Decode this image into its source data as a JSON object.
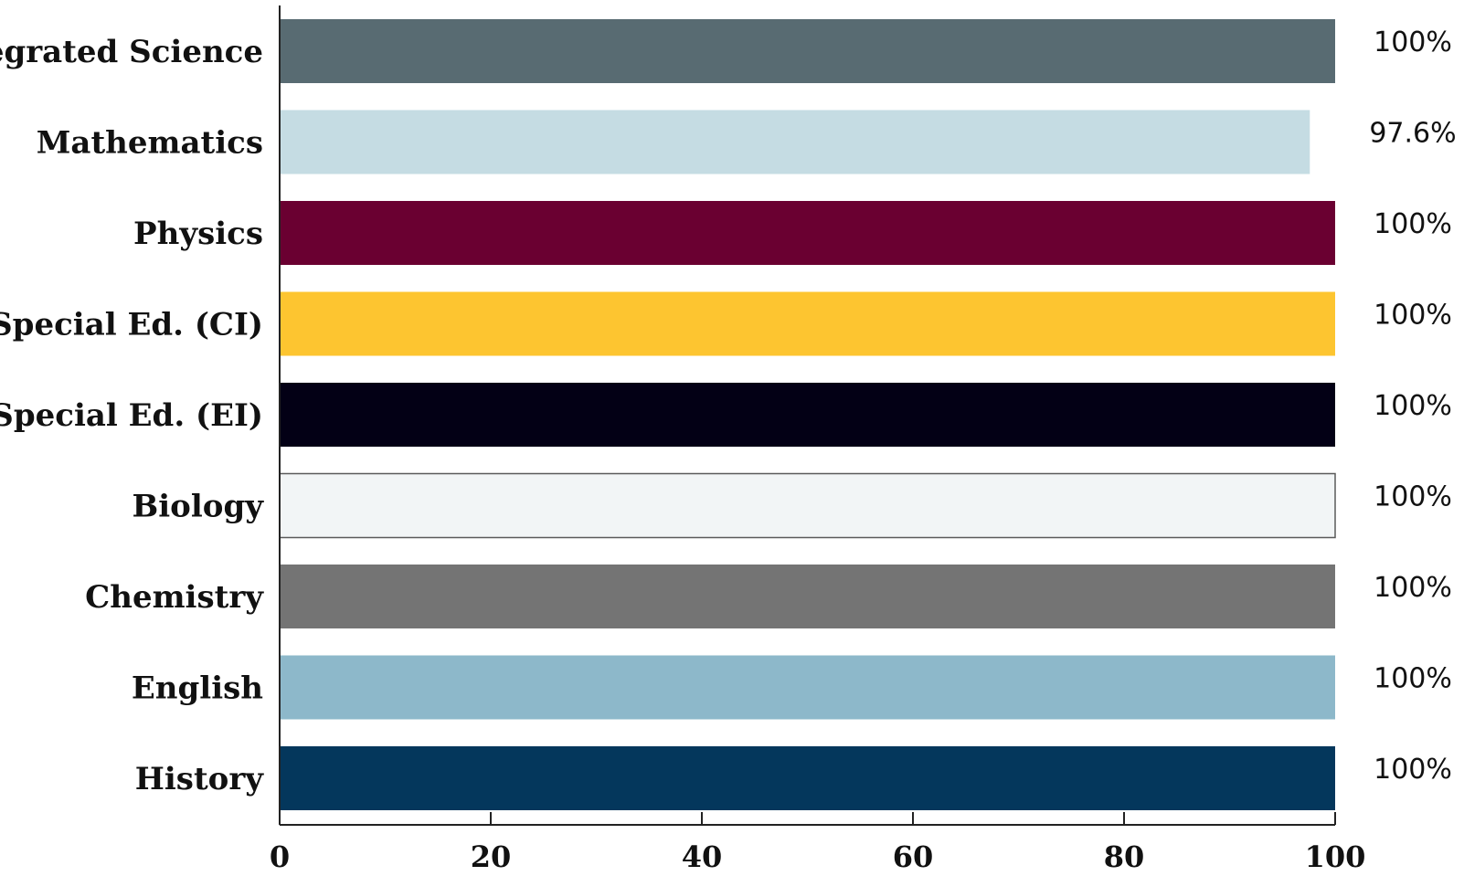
{
  "chart_data": {
    "type": "bar",
    "orientation": "horizontal",
    "title": "",
    "xlabel": "",
    "ylabel": "",
    "categories": [
      "Integrated Science",
      "Mathematics",
      "Physics",
      "Special Ed. (CI)",
      "Special Ed. (EI)",
      "Biology",
      "Chemistry",
      "English",
      "History"
    ],
    "values": [
      100,
      97.6,
      100,
      100,
      100,
      100,
      100,
      100,
      100
    ],
    "data_labels": [
      "100%",
      "97.6%",
      "100%",
      "100%",
      "100%",
      "100%",
      "100%",
      "100%",
      "100%"
    ],
    "colors": [
      "#586b72",
      "#c5dce3",
      "#6a0031",
      "#fdc530",
      "#030015",
      "#f2f5f6",
      "#747474",
      "#8db8ca",
      "#04375c"
    ],
    "xlim": [
      0,
      100
    ],
    "xticks": [
      0,
      20,
      40,
      60,
      80,
      100
    ],
    "grid": false,
    "legend": "none"
  }
}
